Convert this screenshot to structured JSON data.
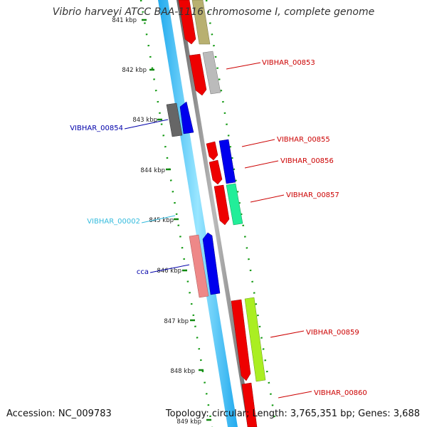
{
  "header": {
    "title": "Vibrio harveyi ATCC BAA-1116 chromosome I, complete genome"
  },
  "footer": {
    "accession": "Accession: NC_009783",
    "summary": "Topology: circular; Length: 3,765,351 bp; Genes: 3,688"
  },
  "ruler": {
    "ticks": [
      {
        "label": "841 kbp"
      },
      {
        "label": "842 kbp"
      },
      {
        "label": "843 kbp"
      },
      {
        "label": "844 kbp"
      },
      {
        "label": "845 kbp"
      },
      {
        "label": "846 kbp"
      },
      {
        "label": "847 kbp"
      },
      {
        "label": "848 kbp"
      },
      {
        "label": "849 kbp"
      }
    ]
  },
  "features": [
    {
      "label": "VIBHAR_00853",
      "color": "#cc0000"
    },
    {
      "label": "VIBHAR_00854",
      "color": "#0000aa"
    },
    {
      "label": "VIBHAR_00855",
      "color": "#cc0000"
    },
    {
      "label": "VIBHAR_00856",
      "color": "#cc0000"
    },
    {
      "label": "VIBHAR_00857",
      "color": "#cc0000"
    },
    {
      "label": "VIBHAR_00002",
      "color": "#33bbdd"
    },
    {
      "label": "cca",
      "color": "#0000aa"
    },
    {
      "label": "VIBHAR_00859",
      "color": "#cc0000"
    },
    {
      "label": "VIBHAR_00860",
      "color": "#cc0000"
    }
  ],
  "colors": {
    "backbone_outer": "#33bbee",
    "backbone_inner": "#88ddff",
    "backbone_gray": "#888888",
    "tick": "#118811",
    "gene_red": "#ee0000",
    "gene_blue": "#0000ee",
    "gene_gray": "#666666",
    "gene_olive": "#b8b070",
    "gene_silver": "#bbbbbb",
    "gene_pink": "#ee8888",
    "gene_aqua": "#22ee99",
    "gene_lime": "#aaee22"
  }
}
